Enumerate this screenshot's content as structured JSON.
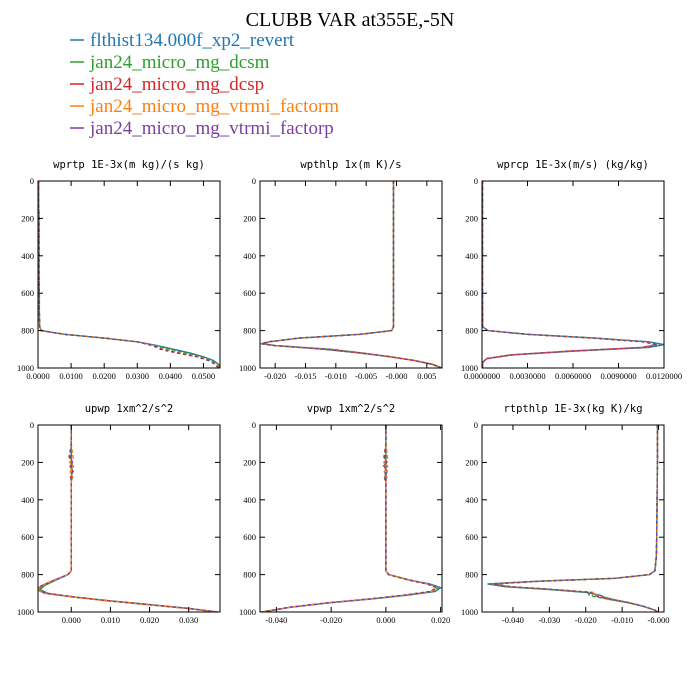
{
  "title": "CLUBB VAR at355E,-5N",
  "colors": {
    "blue": "#1f77b4",
    "green": "#2ca02c",
    "red": "#d62728",
    "orange": "#ff7f0e",
    "purple": "#7b3f9e"
  },
  "legend": [
    {
      "label": "flthist134.000f_xp2_revert",
      "color": "#1f77b4"
    },
    {
      "label": "jan24_micro_mg_dcsm",
      "color": "#2ca02c"
    },
    {
      "label": "jan24_micro_mg_dcsp",
      "color": "#d62728"
    },
    {
      "label": "jan24_micro_mg_vtrmi_factorm",
      "color": "#ff7f0e"
    },
    {
      "label": "jan24_micro_mg_vtrmi_factorp",
      "color": "#7b3f9e"
    }
  ],
  "chart_data": [
    {
      "type": "line",
      "title": "wprtp  1E-3x(m kg)/(s kg)",
      "xlim": [
        0,
        0.055
      ],
      "ylim": [
        1000,
        0
      ],
      "xticks": [
        "0.0000",
        "0.0100",
        "0.0200",
        "0.0300",
        "0.0400",
        "0.0500"
      ],
      "xtick_values": [
        0,
        0.01,
        0.02,
        0.03,
        0.04,
        0.05
      ],
      "yticks": [
        0,
        200,
        400,
        600,
        800,
        1000
      ],
      "y": [
        0,
        100,
        200,
        300,
        400,
        500,
        600,
        700,
        780,
        800,
        820,
        840,
        860,
        880,
        900,
        920,
        940,
        960,
        980,
        1000
      ],
      "series": [
        {
          "color": "#1f77b4",
          "values": [
            0.0002,
            0.0002,
            0.0003,
            0.0003,
            0.0003,
            0.0003,
            0.0004,
            0.0004,
            0.0005,
            0.001,
            0.008,
            0.02,
            0.03,
            0.036,
            0.041,
            0.046,
            0.05,
            0.053,
            0.0545,
            0.055
          ]
        },
        {
          "color": "#2ca02c",
          "values": [
            0.0002,
            0.0002,
            0.0003,
            0.0003,
            0.0003,
            0.0003,
            0.0004,
            0.0004,
            0.0005,
            0.001,
            0.008,
            0.02,
            0.03,
            0.0355,
            0.04,
            0.045,
            0.0495,
            0.0525,
            0.0545,
            0.0553
          ]
        },
        {
          "color": "#d62728",
          "values": [
            0.0002,
            0.0002,
            0.0003,
            0.0003,
            0.0003,
            0.0003,
            0.0004,
            0.0004,
            0.0005,
            0.001,
            0.008,
            0.02,
            0.03,
            0.0345,
            0.037,
            0.042,
            0.048,
            0.0515,
            0.0535,
            0.0545
          ]
        },
        {
          "color": "#ff7f0e",
          "values": [
            0.0002,
            0.0002,
            0.0003,
            0.0003,
            0.0003,
            0.0003,
            0.0004,
            0.0004,
            0.0005,
            0.001,
            0.008,
            0.02,
            0.03,
            0.035,
            0.038,
            0.043,
            0.0485,
            0.0518,
            0.0538,
            0.0548
          ]
        },
        {
          "color": "#7b3f9e",
          "values": [
            0.0002,
            0.0002,
            0.0003,
            0.0003,
            0.0003,
            0.0003,
            0.0004,
            0.0004,
            0.0005,
            0.001,
            0.008,
            0.02,
            0.03,
            0.0348,
            0.0375,
            0.0425,
            0.0482,
            0.0516,
            0.0536,
            0.0546
          ]
        }
      ]
    },
    {
      "type": "line",
      "title": "wpthlp  1x(m K)/s",
      "xlim": [
        -0.0225,
        0.0075
      ],
      "ylim": [
        1000,
        0
      ],
      "xticks": [
        "-0.020",
        "-0.015",
        "-0.010",
        "-0.005",
        "-0.000",
        "0.005"
      ],
      "xtick_values": [
        -0.02,
        -0.015,
        -0.01,
        -0.005,
        0,
        0.005
      ],
      "yticks": [
        0,
        200,
        400,
        600,
        800,
        1000
      ],
      "y": [
        0,
        200,
        400,
        600,
        700,
        780,
        800,
        820,
        840,
        860,
        870,
        880,
        900,
        920,
        940,
        960,
        980,
        1000
      ],
      "series": [
        {
          "color": "#1f77b4",
          "values": [
            -0.0005,
            -0.0005,
            -0.0005,
            -0.0005,
            -0.0005,
            -0.0005,
            -0.0008,
            -0.006,
            -0.016,
            -0.021,
            -0.022,
            -0.02,
            -0.012,
            -0.006,
            -0.001,
            0.003,
            0.006,
            0.0075
          ]
        },
        {
          "color": "#2ca02c",
          "values": [
            -0.0005,
            -0.0005,
            -0.0005,
            -0.0005,
            -0.0005,
            -0.0005,
            -0.0008,
            -0.006,
            -0.016,
            -0.021,
            -0.0222,
            -0.02,
            -0.0105,
            -0.0055,
            -0.001,
            0.003,
            0.0058,
            0.0075
          ]
        },
        {
          "color": "#d62728",
          "values": [
            -0.0005,
            -0.0005,
            -0.0005,
            -0.0005,
            -0.0005,
            -0.0005,
            -0.0008,
            -0.006,
            -0.016,
            -0.0212,
            -0.0224,
            -0.0202,
            -0.0115,
            -0.0058,
            -0.001,
            0.003,
            0.0058,
            0.0075
          ]
        },
        {
          "color": "#ff7f0e",
          "values": [
            -0.0005,
            -0.0005,
            -0.0005,
            -0.0005,
            -0.0005,
            -0.0005,
            -0.0008,
            -0.006,
            -0.016,
            -0.0211,
            -0.0223,
            -0.0201,
            -0.0112,
            -0.0057,
            -0.001,
            0.003,
            0.0058,
            0.0075
          ]
        },
        {
          "color": "#7b3f9e",
          "values": [
            -0.0005,
            -0.0005,
            -0.0005,
            -0.0005,
            -0.0005,
            -0.0005,
            -0.0008,
            -0.006,
            -0.016,
            -0.0211,
            -0.0223,
            -0.0201,
            -0.0113,
            -0.0057,
            -0.001,
            0.003,
            0.0058,
            0.0075
          ]
        }
      ]
    },
    {
      "type": "line",
      "title": "wprcp  1E-3x(m/s) (kg/kg)",
      "xlim": [
        0,
        0.012
      ],
      "ylim": [
        1000,
        0
      ],
      "xticks": [
        "0.0000000",
        "0.0030000",
        "0.0060000",
        "0.0090000",
        "0.0120000"
      ],
      "xtick_values": [
        0,
        0.003,
        0.006,
        0.009,
        0.012
      ],
      "yticks": [
        0,
        200,
        400,
        600,
        800,
        1000
      ],
      "y": [
        0,
        200,
        400,
        600,
        780,
        800,
        820,
        840,
        860,
        875,
        890,
        910,
        930,
        950,
        970,
        1000
      ],
      "series": [
        {
          "color": "#1f77b4",
          "values": [
            3e-05,
            3e-05,
            3e-05,
            3e-05,
            4e-05,
            0.0004,
            0.003,
            0.0075,
            0.011,
            0.012,
            0.011,
            0.006,
            0.002,
            0.0003,
            5e-05,
            3e-05
          ]
        },
        {
          "color": "#2ca02c",
          "values": [
            3e-05,
            3e-05,
            3e-05,
            3e-05,
            4e-05,
            0.0004,
            0.003,
            0.0074,
            0.0108,
            0.0118,
            0.0108,
            0.0058,
            0.0019,
            0.0003,
            5e-05,
            3e-05
          ]
        },
        {
          "color": "#d62728",
          "values": [
            3e-05,
            3e-05,
            3e-05,
            3e-05,
            4e-05,
            0.0004,
            0.003,
            0.0073,
            0.0106,
            0.0115,
            0.0105,
            0.0057,
            0.0019,
            0.0003,
            5e-05,
            3e-05
          ]
        },
        {
          "color": "#ff7f0e",
          "values": [
            3e-05,
            3e-05,
            3e-05,
            3e-05,
            4e-05,
            0.0004,
            0.003,
            0.0073,
            0.0107,
            0.0116,
            0.0106,
            0.0057,
            0.0019,
            0.0003,
            5e-05,
            3e-05
          ]
        },
        {
          "color": "#7b3f9e",
          "values": [
            3e-05,
            3e-05,
            3e-05,
            3e-05,
            4e-05,
            0.0004,
            0.003,
            0.0073,
            0.0106,
            0.0116,
            0.0106,
            0.0057,
            0.0019,
            0.0003,
            5e-05,
            3e-05
          ]
        }
      ]
    },
    {
      "type": "line",
      "title": "upwp  1xm^2/s^2",
      "xlim": [
        -0.0085,
        0.038
      ],
      "ylim": [
        1000,
        0
      ],
      "xticks": [
        "0.000",
        "0.010",
        "0.020",
        "0.030"
      ],
      "xtick_values": [
        0,
        0.01,
        0.02,
        0.03
      ],
      "yticks": [
        0,
        200,
        400,
        600,
        800,
        1000
      ],
      "y": [
        0,
        100,
        180,
        200,
        220,
        250,
        280,
        300,
        400,
        600,
        780,
        800,
        830,
        860,
        880,
        900,
        920,
        940,
        960,
        980,
        1000
      ],
      "series": [
        {
          "color": "#1f77b4",
          "values": [
            0.0,
            0.0,
            0.0,
            0.0002,
            0.0001,
            0.0002,
            0.0001,
            0.0,
            0.0,
            0.0,
            0.0,
            -0.0008,
            -0.004,
            -0.007,
            -0.008,
            -0.006,
            0.001,
            0.01,
            0.02,
            0.03,
            0.037
          ]
        },
        {
          "color": "#2ca02c",
          "values": [
            0.0,
            0.0,
            -0.0004,
            -0.0002,
            0.0003,
            -0.0001,
            0.0003,
            0.0,
            0.0,
            0.0,
            0.0,
            -0.0008,
            -0.0042,
            -0.0072,
            -0.0082,
            -0.0062,
            0.0008,
            0.0095,
            0.0195,
            0.0295,
            0.0372
          ]
        },
        {
          "color": "#d62728",
          "values": [
            0.0,
            0.0,
            -0.0006,
            0.0004,
            -0.0003,
            0.0005,
            -0.0002,
            0.0,
            0.0,
            0.0,
            0.0,
            -0.0009,
            -0.0045,
            -0.0078,
            -0.0088,
            -0.0068,
            0.0005,
            0.0092,
            0.0192,
            0.0292,
            0.0375
          ]
        },
        {
          "color": "#ff7f0e",
          "values": [
            0.0,
            0.0,
            0.0005,
            -0.0004,
            0.0006,
            -0.0003,
            0.0004,
            0.0,
            0.0,
            0.0,
            0.0,
            -0.0009,
            -0.0044,
            -0.0076,
            -0.0086,
            -0.0066,
            0.0006,
            0.0093,
            0.0193,
            0.0293,
            0.0374
          ]
        },
        {
          "color": "#7b3f9e",
          "values": [
            0.0,
            0.0,
            -0.0003,
            0.0003,
            -0.0002,
            0.0003,
            -0.0001,
            0.0,
            0.0,
            0.0,
            0.0,
            -0.0009,
            -0.0044,
            -0.0077,
            -0.0087,
            -0.0067,
            0.0006,
            0.0093,
            0.0193,
            0.0293,
            0.0374
          ]
        }
      ]
    },
    {
      "type": "line",
      "title": "vpwp  1xm^2/s^2",
      "xlim": [
        -0.046,
        0.0205
      ],
      "ylim": [
        1000,
        0
      ],
      "xticks": [
        "-0.040",
        "-0.020",
        "0.000",
        "0.020"
      ],
      "xtick_values": [
        -0.04,
        -0.02,
        0,
        0.02
      ],
      "yticks": [
        0,
        200,
        400,
        600,
        800,
        1000
      ],
      "y": [
        0,
        100,
        180,
        200,
        220,
        250,
        280,
        300,
        400,
        600,
        780,
        800,
        830,
        850,
        870,
        890,
        910,
        930,
        950,
        975,
        1000
      ],
      "series": [
        {
          "color": "#1f77b4",
          "values": [
            0.0,
            0.0,
            0.0,
            -0.0004,
            0.0002,
            -0.0004,
            0.0001,
            0.0,
            0.0,
            0.0,
            0.0,
            0.001,
            0.009,
            0.016,
            0.02,
            0.018,
            0.008,
            -0.005,
            -0.02,
            -0.035,
            -0.045
          ]
        },
        {
          "color": "#2ca02c",
          "values": [
            0.0,
            0.0,
            -0.0005,
            0.0003,
            -0.0006,
            0.0004,
            -0.0005,
            0.0,
            0.0,
            0.0,
            0.0,
            0.001,
            0.0088,
            0.0156,
            0.0193,
            0.017,
            0.007,
            -0.0055,
            -0.0205,
            -0.0352,
            -0.0452
          ]
        },
        {
          "color": "#d62728",
          "values": [
            0.0,
            0.0,
            -0.0008,
            0.0006,
            -0.0009,
            0.0007,
            -0.0008,
            0.0,
            0.0,
            0.0,
            0.0,
            0.001,
            0.0085,
            0.015,
            0.0185,
            0.0162,
            0.0065,
            -0.006,
            -0.021,
            -0.0355,
            -0.0455
          ]
        },
        {
          "color": "#ff7f0e",
          "values": [
            0.0,
            0.0,
            0.0006,
            -0.0008,
            0.0007,
            -0.0006,
            0.0005,
            0.0,
            0.0,
            0.0,
            0.0,
            0.001,
            0.0086,
            0.0152,
            0.0188,
            0.0165,
            0.0067,
            -0.0058,
            -0.0208,
            -0.0354,
            -0.0454
          ]
        },
        {
          "color": "#7b3f9e",
          "values": [
            0.0,
            0.0,
            -0.0003,
            0.0002,
            -0.0004,
            0.0003,
            -0.0003,
            0.0,
            0.0,
            0.0,
            0.0,
            0.001,
            0.0086,
            0.0151,
            0.0187,
            0.0164,
            0.0066,
            -0.0059,
            -0.0209,
            -0.0354,
            -0.0454
          ]
        }
      ]
    },
    {
      "type": "line",
      "title": "rtpthlp  1E-3x(kg K)/kg",
      "xlim": [
        -0.0485,
        0.0015
      ],
      "ylim": [
        1000,
        0
      ],
      "xticks": [
        "-0.040",
        "-0.030",
        "-0.020",
        "-0.010",
        "-0.000"
      ],
      "xtick_values": [
        -0.04,
        -0.03,
        -0.02,
        -0.01,
        0
      ],
      "yticks": [
        0,
        200,
        400,
        600,
        800,
        1000
      ],
      "y": [
        0,
        200,
        400,
        600,
        700,
        780,
        800,
        820,
        835,
        850,
        865,
        880,
        895,
        910,
        920,
        935,
        950,
        970,
        990,
        1000
      ],
      "series": [
        {
          "color": "#1f77b4",
          "values": [
            -0.0003,
            -0.0003,
            -0.0004,
            -0.0005,
            -0.0006,
            -0.001,
            -0.0025,
            -0.012,
            -0.033,
            -0.047,
            -0.042,
            -0.03,
            -0.02,
            -0.016,
            -0.015,
            -0.012,
            -0.008,
            -0.004,
            -0.001,
            -0.0002
          ]
        },
        {
          "color": "#2ca02c",
          "values": [
            -0.0003,
            -0.0003,
            -0.0004,
            -0.0005,
            -0.0006,
            -0.001,
            -0.0025,
            -0.012,
            -0.0325,
            -0.046,
            -0.041,
            -0.029,
            -0.0195,
            -0.019,
            -0.017,
            -0.013,
            -0.0085,
            -0.0042,
            -0.0011,
            -0.0002
          ]
        },
        {
          "color": "#d62728",
          "values": [
            -0.0003,
            -0.0003,
            -0.0004,
            -0.0005,
            -0.0006,
            -0.001,
            -0.0025,
            -0.012,
            -0.032,
            -0.0455,
            -0.0405,
            -0.0285,
            -0.0185,
            -0.0175,
            -0.016,
            -0.0125,
            -0.0083,
            -0.0041,
            -0.001,
            -0.0002
          ]
        },
        {
          "color": "#ff7f0e",
          "values": [
            -0.0003,
            -0.0003,
            -0.0004,
            -0.0005,
            -0.0006,
            -0.001,
            -0.0025,
            -0.012,
            -0.0322,
            -0.0457,
            -0.0407,
            -0.0287,
            -0.018,
            -0.0168,
            -0.0155,
            -0.0122,
            -0.0082,
            -0.0041,
            -0.001,
            -0.0002
          ]
        },
        {
          "color": "#7b3f9e",
          "values": [
            -0.0003,
            -0.0003,
            -0.0004,
            -0.0005,
            -0.0006,
            -0.001,
            -0.0025,
            -0.012,
            -0.0321,
            -0.0456,
            -0.0406,
            -0.0286,
            -0.0186,
            -0.0177,
            -0.0161,
            -0.0125,
            -0.0083,
            -0.0041,
            -0.001,
            -0.0002
          ]
        }
      ]
    }
  ]
}
